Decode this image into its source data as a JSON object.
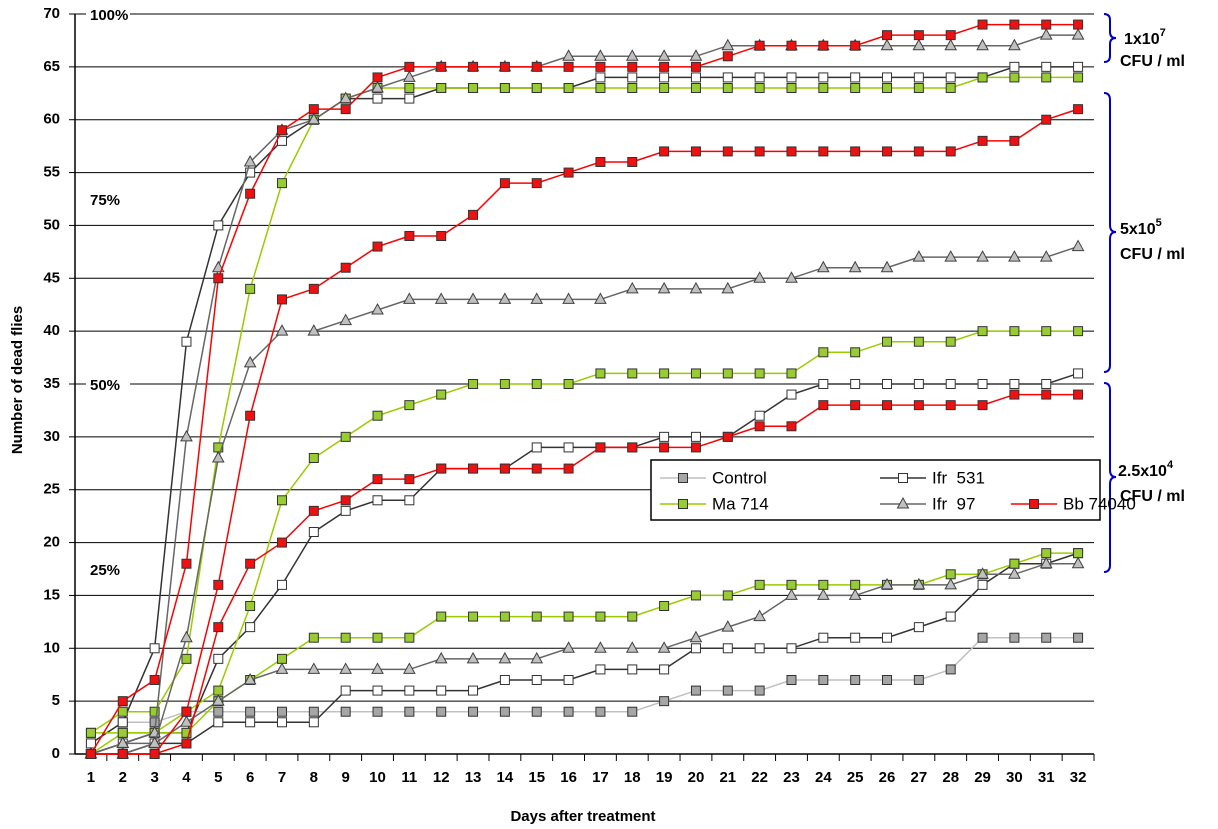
{
  "chart_data": {
    "type": "line",
    "x_label": "Days after treatment",
    "y_label": "Number of dead flies",
    "categories": [
      "1",
      "2",
      "3",
      "4",
      "5",
      "6",
      "7",
      "8",
      "9",
      "10",
      "11",
      "12",
      "13",
      "14",
      "15",
      "16",
      "17",
      "18",
      "19",
      "20",
      "21",
      "22",
      "23",
      "24",
      "25",
      "26",
      "27",
      "28",
      "29",
      "30",
      "31",
      "32"
    ],
    "ylim": [
      0,
      70
    ],
    "yticks": [
      0,
      5,
      10,
      15,
      20,
      25,
      30,
      35,
      40,
      45,
      50,
      55,
      60,
      65,
      70
    ],
    "grid": true,
    "legend": "right",
    "percent_marks": [
      {
        "value": 70,
        "label": "100%"
      },
      {
        "value": 52.5,
        "label": "75%"
      },
      {
        "value": 35,
        "label": "50%"
      },
      {
        "value": 17.5,
        "label": "25%"
      }
    ],
    "dose_labels": [
      {
        "base": "1x10",
        "exp": "7",
        "unit": "CFU / ml"
      },
      {
        "base": "5x10",
        "exp": "5",
        "unit": "CFU / ml"
      },
      {
        "base": "2.5x10",
        "exp": "4",
        "unit": "CFU / ml"
      }
    ],
    "dose_color": "#0000cc",
    "series": [
      {
        "name": "Control",
        "color": "#c0c0c0",
        "marker": "square",
        "marker_fill": "#a6a6a6",
        "lines": [
          [
            1,
            3,
            3,
            4,
            4,
            4,
            4,
            4,
            4,
            4,
            4,
            4,
            4,
            4,
            4,
            4,
            4,
            4,
            5,
            6,
            6,
            6,
            7,
            7,
            7,
            7,
            7,
            8,
            11,
            11,
            11,
            11
          ]
        ]
      },
      {
        "name": "Ifr  531",
        "color": "#333333",
        "marker": "square",
        "marker_fill": "#ffffff",
        "lines": [
          [
            1,
            3,
            10,
            39,
            50,
            55,
            58,
            60,
            62,
            62,
            62,
            63,
            63,
            63,
            63,
            63,
            64,
            64,
            64,
            64,
            64,
            64,
            64,
            64,
            64,
            64,
            64,
            64,
            64,
            65,
            65,
            65
          ],
          [
            0,
            1,
            2,
            2,
            9,
            12,
            16,
            21,
            23,
            24,
            24,
            27,
            27,
            27,
            29,
            29,
            29,
            29,
            30,
            30,
            30,
            32,
            34,
            35,
            35,
            35,
            35,
            35,
            35,
            35,
            35,
            36
          ],
          [
            0,
            0,
            1,
            1,
            3,
            3,
            3,
            3,
            6,
            6,
            6,
            6,
            6,
            7,
            7,
            7,
            8,
            8,
            8,
            10,
            10,
            10,
            10,
            11,
            11,
            11,
            12,
            13,
            16,
            18,
            18,
            19
          ]
        ]
      },
      {
        "name": "Ma 714",
        "color": "#99cc00",
        "marker": "square",
        "marker_fill": "#99cc33",
        "lines": [
          [
            2,
            4,
            4,
            9,
            29,
            44,
            54,
            60,
            62,
            63,
            63,
            63,
            63,
            63,
            63,
            63,
            63,
            63,
            63,
            63,
            63,
            63,
            63,
            63,
            63,
            63,
            63,
            63,
            64,
            64,
            64,
            64
          ],
          [
            0,
            2,
            2,
            4,
            6,
            14,
            24,
            28,
            30,
            32,
            33,
            34,
            35,
            35,
            35,
            35,
            36,
            36,
            36,
            36,
            36,
            36,
            36,
            38,
            38,
            39,
            39,
            39,
            40,
            40,
            40,
            40
          ],
          [
            2,
            2,
            2,
            2,
            5,
            7,
            9,
            11,
            11,
            11,
            11,
            13,
            13,
            13,
            13,
            13,
            13,
            13,
            14,
            15,
            15,
            16,
            16,
            16,
            16,
            16,
            16,
            17,
            17,
            18,
            19,
            19
          ]
        ]
      },
      {
        "name": "Ifr  97",
        "color": "#666666",
        "marker": "triangle",
        "marker_fill": "#c0c0c0",
        "lines": [
          [
            0,
            1,
            2,
            30,
            46,
            56,
            59,
            60,
            62,
            63,
            64,
            65,
            65,
            65,
            65,
            66,
            66,
            66,
            66,
            66,
            67,
            67,
            67,
            67,
            67,
            67,
            67,
            67,
            67,
            67,
            68,
            68
          ],
          [
            0,
            1,
            1,
            11,
            28,
            37,
            40,
            40,
            41,
            42,
            43,
            43,
            43,
            43,
            43,
            43,
            43,
            44,
            44,
            44,
            44,
            45,
            45,
            46,
            46,
            46,
            47,
            47,
            47,
            47,
            47,
            48
          ],
          [
            0,
            0,
            1,
            3,
            5,
            7,
            8,
            8,
            8,
            8,
            8,
            9,
            9,
            9,
            9,
            10,
            10,
            10,
            10,
            11,
            12,
            13,
            15,
            15,
            15,
            16,
            16,
            16,
            17,
            17,
            18,
            18
          ]
        ]
      },
      {
        "name": "Bb 74040",
        "color": "#ff0000",
        "marker": "square",
        "marker_fill": "#ee1111",
        "lines": [
          [
            0,
            5,
            7,
            18,
            45,
            53,
            59,
            61,
            61,
            64,
            65,
            65,
            65,
            65,
            65,
            65,
            65,
            65,
            65,
            65,
            66,
            67,
            67,
            67,
            67,
            68,
            68,
            68,
            69,
            69,
            69,
            69
          ],
          [
            0,
            0,
            0,
            4,
            16,
            32,
            43,
            44,
            46,
            48,
            49,
            49,
            51,
            54,
            54,
            55,
            56,
            56,
            57,
            57,
            57,
            57,
            57,
            57,
            57,
            57,
            57,
            57,
            58,
            58,
            60,
            61
          ],
          [
            0,
            0,
            0,
            1,
            12,
            18,
            20,
            23,
            24,
            26,
            26,
            27,
            27,
            27,
            27,
            27,
            29,
            29,
            29,
            29,
            30,
            31,
            31,
            33,
            33,
            33,
            33,
            33,
            33,
            34,
            34,
            34
          ]
        ]
      }
    ]
  }
}
